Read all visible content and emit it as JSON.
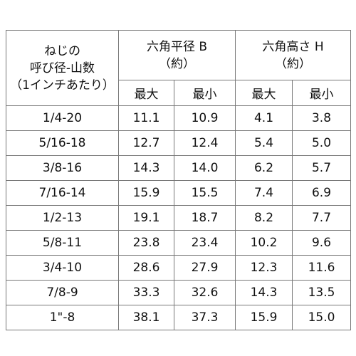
{
  "header": {
    "size_label": [
      "ねじの",
      "呼び径-山数",
      "（1インチあたり）"
    ],
    "groups": [
      {
        "title": "六角平径 B",
        "note": "（約）",
        "columns": [
          "最大",
          "最小"
        ]
      },
      {
        "title": "六角高さ H",
        "note": "（約）",
        "columns": [
          "最大",
          "最小"
        ]
      }
    ]
  },
  "rows": [
    [
      "1/4-20",
      "11.1",
      "10.9",
      "4.1",
      "3.8"
    ],
    [
      "5/16-18",
      "12.7",
      "12.4",
      "5.4",
      "5.0"
    ],
    [
      "3/8-16",
      "14.3",
      "14.0",
      "6.2",
      "5.7"
    ],
    [
      "7/16-14",
      "15.9",
      "15.5",
      "7.4",
      "6.9"
    ],
    [
      "1/2-13",
      "19.1",
      "18.7",
      "8.2",
      "7.7"
    ],
    [
      "5/8-11",
      "23.8",
      "23.4",
      "10.2",
      "9.6"
    ],
    [
      "3/4-10",
      "28.6",
      "27.9",
      "12.3",
      "11.6"
    ],
    [
      "7/8-9",
      "33.3",
      "32.6",
      "14.3",
      "13.5"
    ],
    [
      "1\"-8",
      "38.1",
      "37.3",
      "15.9",
      "15.0"
    ]
  ]
}
